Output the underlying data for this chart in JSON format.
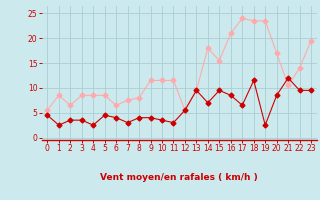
{
  "x": [
    0,
    1,
    2,
    3,
    4,
    5,
    6,
    7,
    8,
    9,
    10,
    11,
    12,
    13,
    14,
    15,
    16,
    17,
    18,
    19,
    20,
    21,
    22,
    23
  ],
  "rafales": [
    5.5,
    8.5,
    6.5,
    8.5,
    8.5,
    8.5,
    6.5,
    7.5,
    8.0,
    11.5,
    11.5,
    11.5,
    5.5,
    9.5,
    18.0,
    15.5,
    21.0,
    24.0,
    23.5,
    23.5,
    17.0,
    10.5,
    14.0,
    19.5
  ],
  "moyen": [
    4.5,
    2.5,
    3.5,
    3.5,
    2.5,
    4.5,
    4.0,
    3.0,
    4.0,
    4.0,
    3.5,
    3.0,
    5.5,
    9.5,
    7.0,
    9.5,
    8.5,
    6.5,
    11.5,
    2.5,
    8.5,
    12.0,
    9.5,
    9.5
  ],
  "bg_color": "#cce9ee",
  "grid_color": "#aacdd4",
  "rafales_color": "#ffaaaa",
  "moyen_color": "#cc0000",
  "xlabel": "Vent moyen/en rafales ( km/h )",
  "xlabel_color": "#cc0000",
  "tick_color": "#cc0000",
  "yticks": [
    0,
    5,
    10,
    15,
    20,
    25
  ],
  "ylim": [
    -0.5,
    26.5
  ],
  "xlim": [
    -0.5,
    23.5
  ]
}
